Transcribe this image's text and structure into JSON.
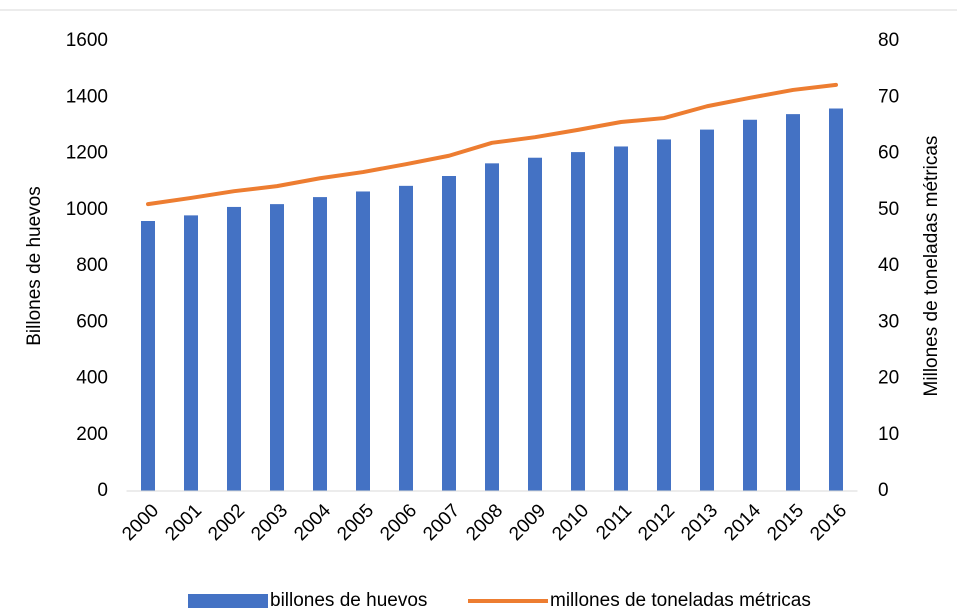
{
  "chart_data": {
    "type": "bar+line",
    "categories": [
      "2000",
      "2001",
      "2002",
      "2003",
      "2004",
      "2005",
      "2006",
      "2007",
      "2008",
      "2009",
      "2010",
      "2011",
      "2012",
      "2013",
      "2014",
      "2015",
      "2016"
    ],
    "ylabel": "Billones de huevos",
    "y2label": "Millones de toneladas  métricas",
    "ylim": [
      0,
      1600
    ],
    "yticks": [
      0,
      200,
      400,
      600,
      800,
      1000,
      1200,
      1400,
      1600
    ],
    "y2lim": [
      0,
      80
    ],
    "y2ticks": [
      0,
      10,
      20,
      30,
      40,
      50,
      60,
      70,
      80
    ],
    "grid": false,
    "legend": "bottom",
    "series": [
      {
        "name": "billones de huevos",
        "type": "bar",
        "color": "#4472c4",
        "values": [
          960,
          980,
          1010,
          1020,
          1045,
          1065,
          1085,
          1120,
          1165,
          1185,
          1205,
          1225,
          1250,
          1285,
          1320,
          1340,
          1360
        ]
      },
      {
        "name": "millones de toneladas métricas",
        "type": "line",
        "axis": "y2",
        "color": "#ed7d31",
        "values": [
          51,
          52.1,
          53.3,
          54.2,
          55.6,
          56.7,
          58.1,
          59.6,
          61.9,
          62.9,
          64.2,
          65.6,
          66.3,
          68.4,
          69.9,
          71.3,
          72.2
        ]
      }
    ]
  }
}
